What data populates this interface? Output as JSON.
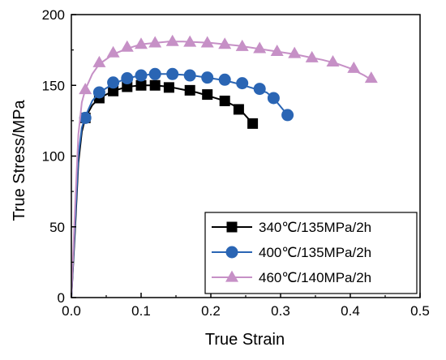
{
  "chart_data": {
    "type": "line",
    "xlabel": "True Strain",
    "ylabel": "True Stress/MPa",
    "xlim": [
      0,
      0.5
    ],
    "ylim": [
      0,
      200
    ],
    "xticks": [
      "0.0",
      "0.1",
      "0.2",
      "0.3",
      "0.4",
      "0.5"
    ],
    "yticks": [
      "0",
      "50",
      "100",
      "150",
      "200"
    ],
    "legend_position": "bottom-right",
    "grid": false,
    "series": [
      {
        "name": "340℃/135MPa/2h",
        "color": "#000000",
        "marker": "square",
        "curve": [
          [
            0,
            0
          ],
          [
            0.005,
            45
          ],
          [
            0.01,
            95
          ],
          [
            0.015,
            117
          ],
          [
            0.02,
            127
          ],
          [
            0.03,
            136
          ],
          [
            0.04,
            141
          ],
          [
            0.06,
            146
          ],
          [
            0.08,
            149
          ],
          [
            0.1,
            150
          ],
          [
            0.12,
            150
          ],
          [
            0.14,
            149
          ],
          [
            0.16,
            147
          ],
          [
            0.18,
            145
          ],
          [
            0.2,
            142
          ],
          [
            0.22,
            139
          ],
          [
            0.24,
            134
          ],
          [
            0.26,
            123
          ]
        ],
        "points": [
          [
            0.02,
            127
          ],
          [
            0.04,
            141
          ],
          [
            0.06,
            146
          ],
          [
            0.08,
            149
          ],
          [
            0.1,
            150
          ],
          [
            0.12,
            150
          ],
          [
            0.14,
            148.5
          ],
          [
            0.17,
            146.5
          ],
          [
            0.195,
            143.5
          ],
          [
            0.22,
            139
          ],
          [
            0.24,
            133
          ],
          [
            0.26,
            123
          ]
        ]
      },
      {
        "name": "400℃/135MPa/2h",
        "color": "#2a65b4",
        "marker": "circle",
        "curve": [
          [
            0,
            0
          ],
          [
            0.005,
            50
          ],
          [
            0.01,
            100
          ],
          [
            0.015,
            120
          ],
          [
            0.02,
            128
          ],
          [
            0.03,
            139
          ],
          [
            0.04,
            145
          ],
          [
            0.06,
            151
          ],
          [
            0.08,
            155
          ],
          [
            0.1,
            157
          ],
          [
            0.12,
            158
          ],
          [
            0.14,
            158
          ],
          [
            0.16,
            157.5
          ],
          [
            0.18,
            156.5
          ],
          [
            0.2,
            155
          ],
          [
            0.22,
            153.5
          ],
          [
            0.24,
            151
          ],
          [
            0.26,
            148
          ],
          [
            0.28,
            145
          ],
          [
            0.29,
            141
          ],
          [
            0.31,
            129
          ]
        ],
        "points": [
          [
            0.02,
            127
          ],
          [
            0.04,
            145
          ],
          [
            0.06,
            152
          ],
          [
            0.08,
            155
          ],
          [
            0.1,
            157
          ],
          [
            0.12,
            158
          ],
          [
            0.145,
            158
          ],
          [
            0.17,
            157
          ],
          [
            0.195,
            155.5
          ],
          [
            0.22,
            154
          ],
          [
            0.245,
            151.5
          ],
          [
            0.27,
            147.5
          ],
          [
            0.29,
            141
          ],
          [
            0.31,
            129
          ]
        ]
      },
      {
        "name": "460℃/140MPa/2h",
        "color": "#c690c6",
        "marker": "triangle",
        "curve": [
          [
            0,
            0
          ],
          [
            0.005,
            60
          ],
          [
            0.01,
            115
          ],
          [
            0.015,
            138
          ],
          [
            0.02,
            147
          ],
          [
            0.03,
            158
          ],
          [
            0.04,
            165
          ],
          [
            0.06,
            172
          ],
          [
            0.08,
            176
          ],
          [
            0.1,
            179
          ],
          [
            0.12,
            180
          ],
          [
            0.14,
            181
          ],
          [
            0.16,
            181
          ],
          [
            0.18,
            180.5
          ],
          [
            0.2,
            180
          ],
          [
            0.22,
            179
          ],
          [
            0.24,
            178
          ],
          [
            0.26,
            176.5
          ],
          [
            0.28,
            175
          ],
          [
            0.3,
            173.5
          ],
          [
            0.32,
            172
          ],
          [
            0.34,
            170
          ],
          [
            0.36,
            168
          ],
          [
            0.38,
            165.5
          ],
          [
            0.4,
            162
          ],
          [
            0.42,
            157
          ],
          [
            0.43,
            154
          ]
        ],
        "points": [
          [
            0.02,
            147
          ],
          [
            0.04,
            166
          ],
          [
            0.06,
            173
          ],
          [
            0.08,
            177
          ],
          [
            0.1,
            179
          ],
          [
            0.12,
            180
          ],
          [
            0.145,
            181
          ],
          [
            0.17,
            180.5
          ],
          [
            0.195,
            180
          ],
          [
            0.22,
            179
          ],
          [
            0.245,
            177.5
          ],
          [
            0.27,
            176
          ],
          [
            0.295,
            174
          ],
          [
            0.32,
            172.5
          ],
          [
            0.345,
            169.5
          ],
          [
            0.375,
            166.5
          ],
          [
            0.405,
            162
          ],
          [
            0.43,
            155
          ]
        ]
      }
    ]
  }
}
